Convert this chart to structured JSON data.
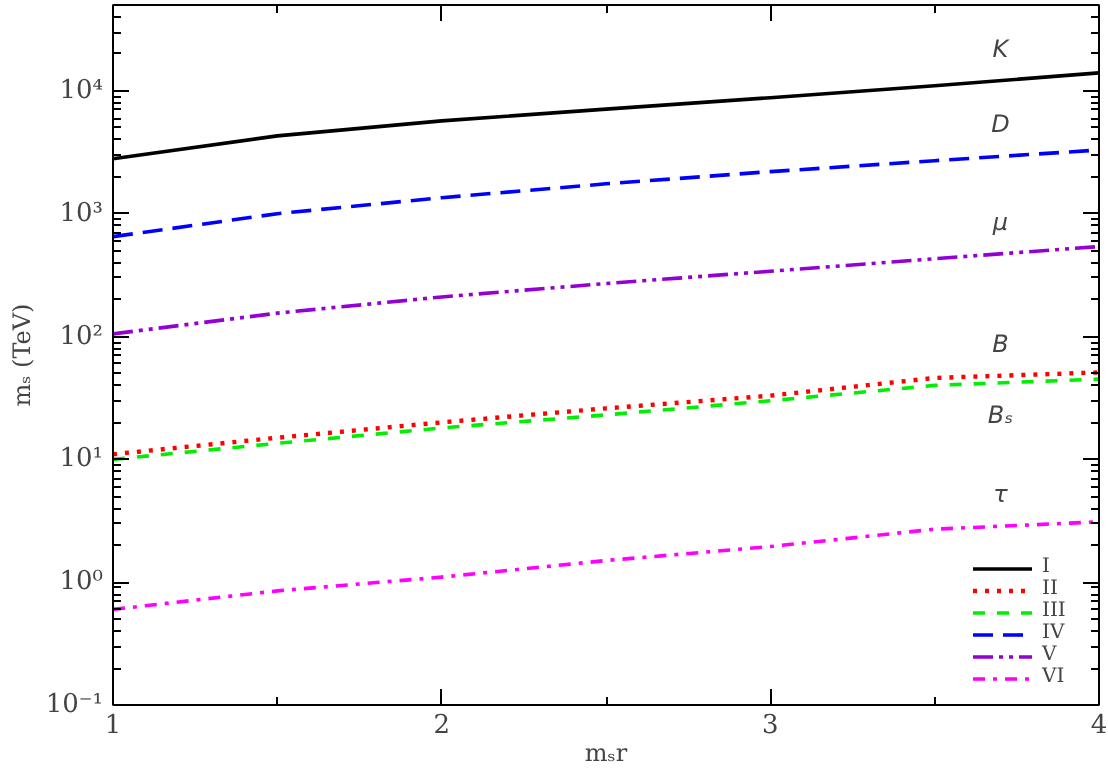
{
  "chart_data": {
    "type": "line",
    "xlabel": "mₛr",
    "ylabel": "mₛ (TeV)",
    "x": [
      1,
      1.5,
      2,
      2.5,
      3,
      3.5,
      4
    ],
    "series": [
      {
        "name": "I",
        "color": "#000000",
        "line_style": "solid",
        "values": [
          2800,
          4300,
          5700,
          7100,
          8800,
          11000,
          14000
        ]
      },
      {
        "name": "II",
        "color": "#ff0000",
        "line_style": "dotted",
        "values": [
          11,
          15,
          20,
          26,
          33,
          46,
          51
        ]
      },
      {
        "name": "III",
        "color": "#00ee00",
        "line_style": "dashed",
        "values": [
          10,
          13.5,
          18,
          23,
          30,
          40,
          45
        ]
      },
      {
        "name": "IV",
        "color": "#0000ff",
        "line_style": "dashed",
        "values": [
          650,
          1000,
          1350,
          1750,
          2200,
          2700,
          3300
        ]
      },
      {
        "name": "V",
        "color": "#9400d3",
        "line_style": "dashdot",
        "values": [
          105,
          155,
          210,
          270,
          340,
          430,
          540
        ]
      },
      {
        "name": "VI",
        "color": "#ff00ff",
        "line_style": "dashdot",
        "values": [
          0.6,
          0.85,
          1.1,
          1.5,
          1.95,
          2.7,
          3.1
        ]
      }
    ],
    "annotations": [
      "K",
      "D",
      "μ",
      "B",
      "Bₛ",
      "τ"
    ],
    "xlim": [
      1,
      4
    ],
    "xticks": [
      1,
      2,
      3,
      4
    ],
    "ylim": [
      0.1,
      50000
    ],
    "log": "y",
    "yticks": [
      {
        "value": 0.1,
        "label": "10⁻¹"
      },
      {
        "value": 1,
        "label": "10⁰"
      },
      {
        "value": 10,
        "label": "10¹"
      },
      {
        "value": 100,
        "label": "10²"
      },
      {
        "value": 1000,
        "label": "10³"
      },
      {
        "value": 10000,
        "label": "10⁴"
      }
    ],
    "grid": false,
    "legend": "bottom right"
  }
}
